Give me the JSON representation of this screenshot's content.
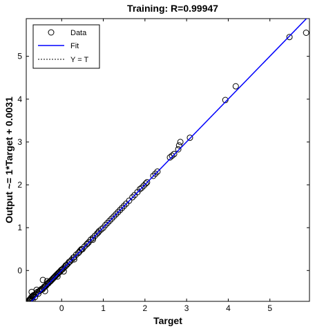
{
  "chart_data": {
    "type": "scatter",
    "title": "Training: R=0.99947",
    "xlabel": "Target",
    "ylabel": "Output ~= 1*Target + 0.0031",
    "xlim": [
      -0.85,
      5.95
    ],
    "ylim": [
      -0.72,
      5.88
    ],
    "xticks": [
      0,
      1,
      2,
      3,
      4,
      5
    ],
    "yticks": [
      0,
      1,
      2,
      3,
      4,
      5
    ],
    "grid": false,
    "legend_position": "top-left",
    "fit": {
      "slope": 1,
      "intercept": 0.0031
    },
    "series": [
      {
        "name": "Data",
        "style": "circle-markers",
        "color": "#000000",
        "points": [
          [
            -0.78,
            -0.7
          ],
          [
            -0.77,
            -0.68
          ],
          [
            -0.76,
            -0.67
          ],
          [
            -0.75,
            -0.69
          ],
          [
            -0.74,
            -0.66
          ],
          [
            -0.73,
            -0.63
          ],
          [
            -0.72,
            -0.65
          ],
          [
            -0.71,
            -0.61
          ],
          [
            -0.7,
            -0.68
          ],
          [
            -0.69,
            -0.6
          ],
          [
            -0.68,
            -0.58
          ],
          [
            -0.66,
            -0.57
          ],
          [
            -0.64,
            -0.62
          ],
          [
            -0.62,
            -0.55
          ],
          [
            -0.6,
            -0.52
          ],
          [
            -0.58,
            -0.5
          ],
          [
            -0.56,
            -0.54
          ],
          [
            -0.54,
            -0.48
          ],
          [
            -0.52,
            -0.47
          ],
          [
            -0.5,
            -0.45
          ],
          [
            -0.48,
            -0.43
          ],
          [
            -0.46,
            -0.44
          ],
          [
            -0.44,
            -0.41
          ],
          [
            -0.42,
            -0.38
          ],
          [
            -0.4,
            -0.37
          ],
          [
            -0.38,
            -0.36
          ],
          [
            -0.36,
            -0.33
          ],
          [
            -0.34,
            -0.31
          ],
          [
            -0.32,
            -0.3
          ],
          [
            -0.3,
            -0.27
          ],
          [
            -0.28,
            -0.26
          ],
          [
            -0.26,
            -0.24
          ],
          [
            -0.24,
            -0.22
          ],
          [
            -0.22,
            -0.2
          ],
          [
            -0.2,
            -0.18
          ],
          [
            -0.18,
            -0.16
          ],
          [
            -0.16,
            -0.14
          ],
          [
            -0.14,
            -0.12
          ],
          [
            -0.12,
            -0.1
          ],
          [
            -0.1,
            -0.08
          ],
          [
            -0.08,
            -0.06
          ],
          [
            -0.06,
            -0.04
          ],
          [
            -0.04,
            -0.03
          ],
          [
            -0.02,
            0.0
          ],
          [
            0.0,
            0.02
          ],
          [
            0.02,
            0.03
          ],
          [
            0.05,
            0.06
          ],
          [
            0.08,
            0.09
          ],
          [
            0.1,
            0.12
          ],
          [
            0.12,
            0.13
          ],
          [
            0.15,
            0.16
          ],
          [
            0.18,
            0.2
          ],
          [
            0.2,
            0.21
          ],
          [
            0.24,
            0.25
          ],
          [
            0.28,
            0.3
          ],
          [
            0.3,
            0.31
          ],
          [
            0.35,
            0.37
          ],
          [
            0.4,
            0.41
          ],
          [
            0.42,
            0.43
          ],
          [
            0.45,
            0.47
          ],
          [
            0.5,
            0.5
          ],
          [
            0.55,
            0.56
          ],
          [
            0.6,
            0.61
          ],
          [
            0.62,
            0.63
          ],
          [
            0.65,
            0.66
          ],
          [
            0.7,
            0.72
          ],
          [
            0.75,
            0.76
          ],
          [
            0.8,
            0.81
          ],
          [
            0.85,
            0.86
          ],
          [
            0.88,
            0.89
          ],
          [
            0.9,
            0.92
          ],
          [
            0.95,
            0.96
          ],
          [
            1.0,
            1.0
          ],
          [
            1.05,
            1.06
          ],
          [
            1.1,
            1.11
          ],
          [
            1.15,
            1.16
          ],
          [
            1.2,
            1.21
          ],
          [
            1.25,
            1.26
          ],
          [
            1.3,
            1.31
          ],
          [
            1.35,
            1.36
          ],
          [
            1.4,
            1.41
          ],
          [
            1.45,
            1.46
          ],
          [
            1.5,
            1.51
          ],
          [
            1.55,
            1.56
          ],
          [
            1.62,
            1.63
          ],
          [
            1.7,
            1.71
          ],
          [
            1.75,
            1.76
          ],
          [
            1.82,
            1.83
          ],
          [
            1.88,
            1.9
          ],
          [
            1.92,
            1.93
          ],
          [
            1.97,
            1.98
          ],
          [
            2.02,
            2.03
          ],
          [
            2.05,
            2.06
          ],
          [
            2.2,
            2.21
          ],
          [
            2.25,
            2.26
          ],
          [
            2.3,
            2.31
          ],
          [
            2.6,
            2.64
          ],
          [
            2.65,
            2.68
          ],
          [
            2.7,
            2.72
          ],
          [
            2.8,
            2.83
          ],
          [
            2.82,
            2.92
          ],
          [
            2.85,
            3.0
          ],
          [
            3.08,
            3.1
          ],
          [
            3.93,
            3.98
          ],
          [
            4.18,
            4.3
          ],
          [
            5.47,
            5.45
          ],
          [
            5.87,
            5.55
          ],
          [
            -0.45,
            -0.22
          ],
          [
            -0.72,
            -0.5
          ],
          [
            -0.6,
            -0.45
          ],
          [
            -0.4,
            -0.48
          ],
          [
            -0.35,
            -0.25
          ],
          [
            -0.1,
            -0.14
          ],
          [
            0.05,
            -0.02
          ],
          [
            0.3,
            0.26
          ],
          [
            0.48,
            0.5
          ],
          [
            0.75,
            0.72
          ]
        ]
      },
      {
        "name": "Fit",
        "style": "solid-line",
        "color": "#0000ff"
      },
      {
        "name": "Y = T",
        "style": "dotted-line",
        "color": "#000000"
      }
    ]
  }
}
